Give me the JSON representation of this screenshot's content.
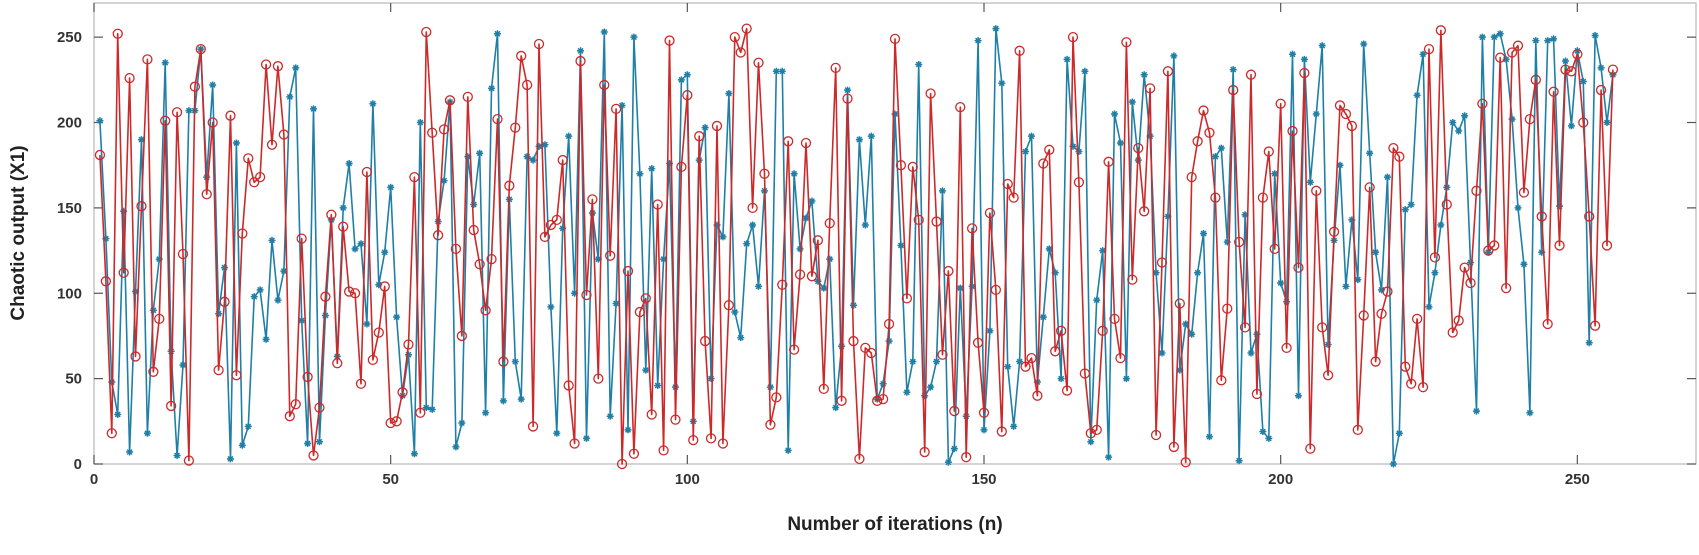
{
  "chart_data": {
    "type": "line",
    "title": "",
    "xlabel": "Number of iterations (n)",
    "ylabel": "Chaotic output (X1)",
    "xlim": [
      0,
      270
    ],
    "ylim": [
      0,
      270
    ],
    "xticks": [
      0,
      50,
      100,
      150,
      200,
      250
    ],
    "yticks": [
      0,
      50,
      100,
      150,
      200,
      250
    ],
    "grid": false,
    "legend": "none",
    "series": [
      {
        "name": "blue-asterisk",
        "color": "#1f7fa6",
        "marker": "asterisk",
        "values": [
          201,
          132,
          48,
          29,
          148,
          7,
          101,
          190,
          18,
          90,
          120,
          235,
          66,
          5,
          58,
          207,
          207,
          243,
          168,
          222,
          88,
          115,
          3,
          188,
          11,
          22,
          98,
          102,
          73,
          131,
          96,
          113,
          215,
          232,
          84,
          12,
          208,
          13,
          87,
          143,
          63,
          150,
          176,
          126,
          129,
          82,
          211,
          105,
          124,
          162,
          86,
          40,
          64,
          6,
          200,
          33,
          32,
          142,
          166,
          212,
          10,
          24,
          180,
          152,
          182,
          30,
          220,
          252,
          37,
          155,
          60,
          38,
          180,
          178,
          186,
          187,
          92,
          18,
          138,
          192,
          100,
          242,
          15,
          147,
          120,
          253,
          28,
          94,
          210,
          20,
          250,
          170,
          55,
          173,
          46,
          120,
          176,
          45,
          225,
          228,
          25,
          178,
          197,
          50,
          140,
          133,
          217,
          89,
          74,
          129,
          140,
          104,
          160,
          45,
          230,
          230,
          8,
          170,
          126,
          144,
          154,
          107,
          103,
          120,
          33,
          69,
          219,
          93,
          190,
          140,
          192,
          38,
          47,
          72,
          205,
          128,
          42,
          60,
          234,
          40,
          45,
          60,
          160,
          1,
          9,
          103,
          28,
          104,
          248,
          20,
          78,
          255,
          223,
          57,
          22,
          60,
          183,
          192,
          48,
          86,
          126,
          112,
          50,
          237,
          186,
          183,
          230,
          13,
          96,
          125,
          4,
          205,
          188,
          50,
          212,
          178,
          228,
          192,
          112,
          65,
          145,
          239,
          55,
          82,
          76,
          112,
          135,
          16,
          180,
          185,
          130,
          231,
          2,
          146,
          65,
          76,
          19,
          15,
          170,
          106,
          95,
          240,
          40,
          237,
          165,
          205,
          245,
          70,
          131,
          175,
          104,
          143,
          108,
          246,
          182,
          124,
          102,
          168,
          0,
          18,
          149,
          152,
          216,
          240,
          92,
          112,
          140,
          162,
          200,
          195,
          204,
          118,
          31,
          250,
          124,
          250,
          252,
          237,
          202,
          150,
          117,
          30,
          248,
          124,
          248,
          249,
          151,
          236,
          198,
          242,
          224,
          71,
          251,
          232,
          200,
          228
        ]
      },
      {
        "name": "red-circle",
        "color": "#cc2a2a",
        "marker": "circle",
        "values": [
          181,
          107,
          18,
          252,
          112,
          226,
          63,
          151,
          237,
          54,
          85,
          201,
          34,
          206,
          123,
          2,
          221,
          243,
          158,
          200,
          55,
          95,
          204,
          52,
          135,
          179,
          165,
          168,
          234,
          187,
          233,
          193,
          28,
          35,
          132,
          51,
          5,
          33,
          98,
          146,
          59,
          139,
          101,
          100,
          47,
          171,
          61,
          77,
          104,
          24,
          25,
          42,
          70,
          168,
          30,
          253,
          194,
          134,
          196,
          213,
          126,
          75,
          215,
          137,
          117,
          90,
          120,
          202,
          60,
          163,
          197,
          239,
          222,
          22,
          246,
          133,
          140,
          143,
          178,
          46,
          12,
          236,
          99,
          155,
          50,
          222,
          122,
          208,
          0,
          113,
          6,
          89,
          97,
          29,
          152,
          8,
          248,
          26,
          174,
          216,
          14,
          192,
          72,
          15,
          198,
          12,
          93,
          250,
          241,
          255,
          150,
          235,
          170,
          23,
          39,
          105,
          189,
          67,
          111,
          188,
          110,
          131,
          44,
          141,
          232,
          37,
          214,
          72,
          3,
          68,
          65,
          37,
          38,
          82,
          249,
          175,
          97,
          174,
          143,
          7,
          217,
          142,
          64,
          113,
          31,
          209,
          4,
          138,
          71,
          30,
          147,
          102,
          19,
          164,
          156,
          242,
          57,
          62,
          40,
          176,
          184,
          66,
          78,
          43,
          250,
          165,
          53,
          18,
          20,
          78,
          177,
          85,
          62,
          247,
          108,
          185,
          148,
          220,
          17,
          118,
          230,
          10,
          94,
          1,
          168,
          189,
          207,
          194,
          156,
          49,
          91,
          219,
          130,
          80,
          228,
          41,
          156,
          183,
          126,
          211,
          68,
          195,
          115,
          229,
          9,
          160,
          80,
          52,
          136,
          210,
          205,
          198,
          20,
          87,
          162,
          60,
          88,
          101,
          185,
          180,
          57,
          47,
          85,
          45,
          243,
          121,
          254,
          152,
          77,
          84,
          115,
          106,
          160,
          211,
          125,
          128,
          238,
          103,
          241,
          245,
          159,
          202,
          225,
          145,
          82,
          218,
          128,
          231,
          230,
          240,
          200,
          145,
          81,
          219,
          128,
          231
        ]
      }
    ]
  }
}
